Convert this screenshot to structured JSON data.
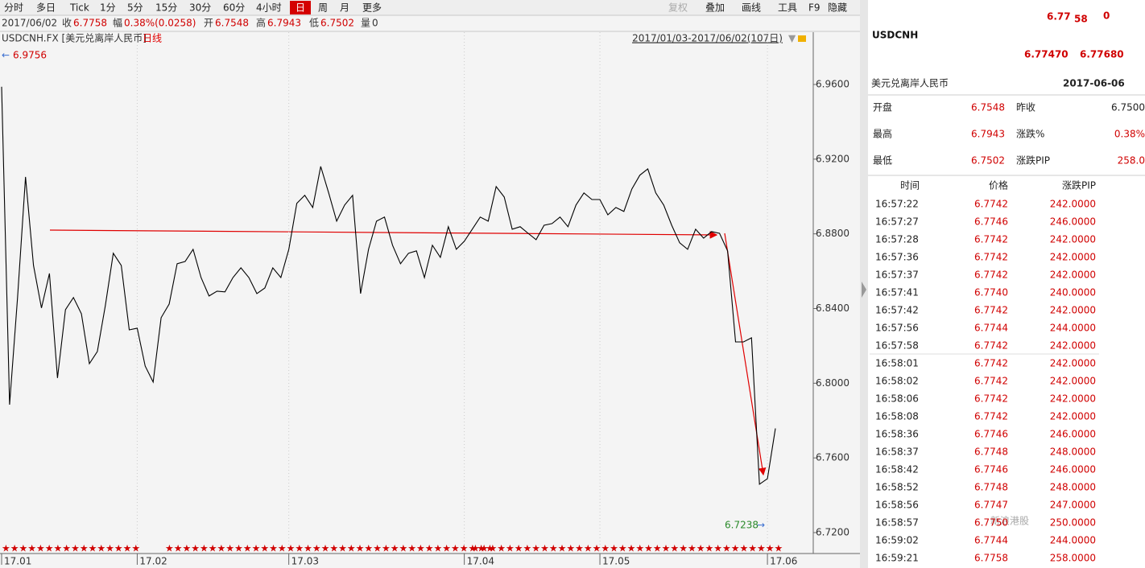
{
  "toolbar": {
    "periods": [
      "分时",
      "多日",
      "Tick",
      "1分",
      "5分",
      "15分",
      "30分",
      "60分",
      "4小时",
      "日",
      "周",
      "月",
      "更多"
    ],
    "active": "日",
    "tools": [
      "复权",
      "叠加",
      "画线",
      "工具",
      "F9",
      "隐藏"
    ]
  },
  "quote_bar": {
    "date": "2017/06/02",
    "items": [
      {
        "label": "收",
        "value": "6.7758"
      },
      {
        "label": "幅",
        "value": "0.38%(0.0258)"
      },
      {
        "label": "开",
        "value": "6.7548"
      },
      {
        "label": "高",
        "value": "6.7943"
      },
      {
        "label": "低",
        "value": "6.7502"
      },
      {
        "label": "量",
        "value": "0"
      }
    ]
  },
  "chart_data": {
    "type": "line",
    "title": "USDCNH.FX [美元兑离岸人民币]",
    "subtitle": "日线",
    "range_label": "2017/01/03-2017/06/02(107日)",
    "color": "#000000",
    "grid": true,
    "categories": [
      "17.01",
      null,
      null,
      null,
      null,
      null,
      null,
      null,
      null,
      null,
      null,
      null,
      null,
      null,
      null,
      null,
      null,
      "17.02",
      null,
      null,
      null,
      null,
      null,
      null,
      null,
      null,
      null,
      null,
      null,
      null,
      null,
      null,
      null,
      null,
      null,
      null,
      "17.03",
      null,
      null,
      null,
      null,
      null,
      null,
      null,
      null,
      null,
      null,
      null,
      null,
      null,
      null,
      null,
      null,
      null,
      null,
      null,
      null,
      null,
      "17.04",
      null,
      null,
      null,
      null,
      null,
      null,
      null,
      null,
      null,
      null,
      null,
      null,
      null,
      null,
      null,
      null,
      "17.05",
      null,
      null,
      null,
      null,
      null,
      null,
      null,
      null,
      null,
      null,
      null,
      null,
      null,
      null,
      null,
      null,
      null,
      null,
      null,
      null,
      "17.06",
      null
    ],
    "values": [
      6.9588,
      6.7885,
      6.8459,
      6.9105,
      6.8631,
      6.8403,
      6.8588,
      6.8028,
      6.8394,
      6.8459,
      6.8372,
      6.8105,
      6.817,
      6.8415,
      6.8696,
      6.8631,
      6.8286,
      6.8295,
      6.8092,
      6.8006,
      6.8351,
      6.8424,
      6.864,
      6.8652,
      6.8717,
      6.8566,
      6.8467,
      6.8493,
      6.8489,
      6.8566,
      6.8618,
      6.8566,
      6.848,
      6.851,
      6.8618,
      6.8566,
      6.8717,
      6.8963,
      6.9006,
      6.8941,
      6.9161,
      6.9019,
      6.8868,
      6.8954,
      6.9006,
      6.848,
      6.8717,
      6.8868,
      6.889,
      6.8739,
      6.864,
      6.8696,
      6.8709,
      6.8566,
      6.8739,
      6.8674,
      6.8838,
      6.8717,
      6.876,
      6.8825,
      6.889,
      6.8868,
      6.9053,
      6.8997,
      6.8825,
      6.8838,
      6.8803,
      6.8769,
      6.8846,
      6.8855,
      6.889,
      6.8838,
      6.8954,
      6.9019,
      6.8984,
      6.8984,
      6.8902,
      6.8941,
      6.892,
      6.904,
      6.9114,
      6.9148,
      6.9019,
      6.8954,
      6.8846,
      6.8752,
      6.8717,
      6.8825,
      6.8777,
      6.8812,
      6.8803,
      6.8709,
      6.8221,
      6.8221,
      6.8243,
      6.7459,
      6.7489,
      6.7758
    ],
    "ylim": [
      6.7088,
      6.988
    ],
    "yticks": [
      {
        "value": 6.72,
        "label": "6.7200"
      },
      {
        "value": 6.76,
        "label": "6.7600"
      },
      {
        "value": 6.8,
        "label": "6.8000"
      },
      {
        "value": 6.84,
        "label": "6.8400"
      },
      {
        "value": 6.88,
        "label": "6.8800"
      },
      {
        "value": 6.92,
        "label": "6.9200"
      },
      {
        "value": 6.96,
        "label": "6.9600"
      }
    ],
    "max_label": 6.9756,
    "min_label": 6.7238
  },
  "panel": {
    "symbol": "USDCNH",
    "price_head": "6.77",
    "price_big": "58",
    "price_tail": "0",
    "bid": "6.77470",
    "ask": "6.77680",
    "name": "美元兑离岸人民币",
    "date": "2017-06-06",
    "stats": [
      [
        "开盘",
        "6.7548",
        "昨收",
        "6.7500"
      ],
      [
        "最高",
        "6.7943",
        "涨跌%",
        "0.38%"
      ],
      [
        "最低",
        "6.7502",
        "涨跌PIP",
        "258.0"
      ]
    ],
    "table_header": [
      "时间",
      "价格",
      "涨跌PIP"
    ],
    "rows": [
      [
        "16:57:22",
        "6.7742",
        "242.0000"
      ],
      [
        "16:57:27",
        "6.7746",
        "246.0000"
      ],
      [
        "16:57:28",
        "6.7742",
        "242.0000"
      ],
      [
        "16:57:36",
        "6.7742",
        "242.0000"
      ],
      [
        "16:57:37",
        "6.7742",
        "242.0000"
      ],
      [
        "16:57:41",
        "6.7740",
        "240.0000"
      ],
      [
        "16:57:42",
        "6.7742",
        "242.0000"
      ],
      [
        "16:57:56",
        "6.7744",
        "244.0000"
      ],
      [
        "16:57:58",
        "6.7742",
        "242.0000"
      ],
      [
        "16:58:01",
        "6.7742",
        "242.0000"
      ],
      [
        "16:58:02",
        "6.7742",
        "242.0000"
      ],
      [
        "16:58:06",
        "6.7742",
        "242.0000"
      ],
      [
        "16:58:08",
        "6.7742",
        "242.0000"
      ],
      [
        "16:58:36",
        "6.7746",
        "246.0000"
      ],
      [
        "16:58:37",
        "6.7748",
        "248.0000"
      ],
      [
        "16:58:42",
        "6.7746",
        "246.0000"
      ],
      [
        "16:58:52",
        "6.7748",
        "248.0000"
      ],
      [
        "16:58:56",
        "6.7747",
        "247.0000"
      ],
      [
        "16:58:57",
        "6.7750",
        "250.0000"
      ],
      [
        "16:59:02",
        "6.7744",
        "244.0000"
      ],
      [
        "16:59:21",
        "6.7758",
        "258.0000"
      ]
    ]
  },
  "watermark": "新浪港股"
}
